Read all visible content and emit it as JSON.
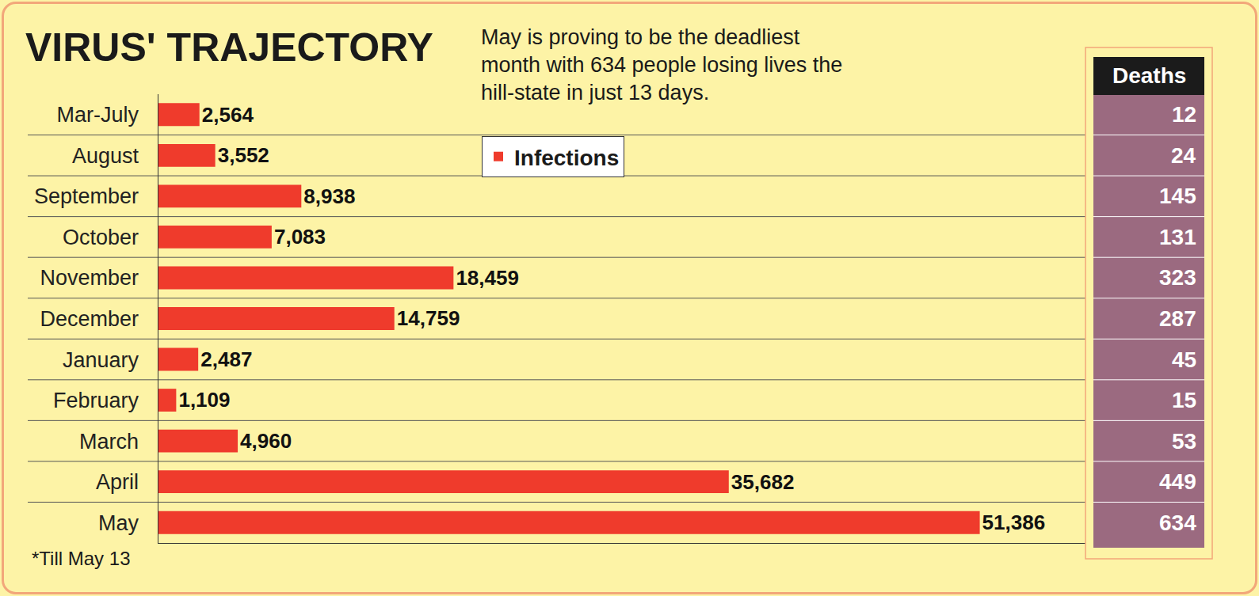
{
  "chart_data": {
    "type": "bar",
    "orientation": "horizontal",
    "title": "VIRUS' TRAJECTORY",
    "subtitle": "May is proving to be the deadliest month with 634 people losing lives the hill-state in just 13 days.",
    "note": "*Till May 13",
    "categories": [
      "Mar-July",
      "August",
      "September",
      "October",
      "November",
      "December",
      "January",
      "February",
      "March",
      "April",
      "May"
    ],
    "series": [
      {
        "name": "Infections",
        "color": "#ef3b2c",
        "values": [
          2564,
          3552,
          8938,
          7083,
          18459,
          14759,
          2487,
          1109,
          4960,
          35682,
          51386
        ],
        "value_labels": [
          "2,564",
          "3,552",
          "8,938",
          "7,083",
          "18,459",
          "14,759",
          "2,487",
          "1,109",
          "4,960",
          "35,682",
          "51,386"
        ]
      }
    ],
    "deaths_header": "Deaths",
    "deaths": [
      12,
      24,
      145,
      131,
      323,
      287,
      45,
      15,
      53,
      449,
      634
    ],
    "xlim": [
      0,
      58000
    ],
    "data_labels": true,
    "tick_labels": "y",
    "grid": false,
    "legend": "top"
  }
}
